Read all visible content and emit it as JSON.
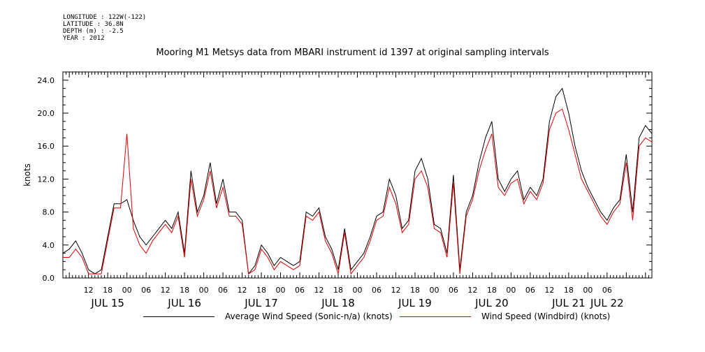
{
  "header": {
    "meta_lines": [
      "LONGITUDE : 122W(-122)",
      "LATITUDE : 36.8N",
      "DEPTH (m) : -2.5",
      "YEAR : 2012"
    ],
    "title": "Mooring M1 Metsys data from MBARI instrument id 1397 at original sampling intervals"
  },
  "colors": {
    "average": "#000000",
    "windbird": "#e00000"
  },
  "chart_data": {
    "type": "line",
    "title": "Mooring M1 Metsys data from MBARI instrument id 1397 at original sampling intervals",
    "ylabel": "knots",
    "xlabel": "",
    "ylim": [
      0,
      25
    ],
    "yticks": [
      0.0,
      4.0,
      8.0,
      12.0,
      16.0,
      20.0,
      24.0
    ],
    "ytick_labels": [
      "0.0",
      "4.0",
      "8.0",
      "12.0",
      "16.0",
      "20.0",
      "24.0"
    ],
    "xlim_hours_from_jul15_00": [
      -20,
      164
    ],
    "hour_tick_labels": [
      "12",
      "18",
      "00",
      "06",
      "12",
      "18",
      "00",
      "06",
      "12",
      "18",
      "00",
      "06",
      "12",
      "18",
      "00",
      "06",
      "12",
      "18",
      "00",
      "06",
      "12",
      "18",
      "00",
      "06",
      "12",
      "18",
      "00",
      "06"
    ],
    "day_labels": [
      "JUL 15",
      "JUL 16",
      "JUL 17",
      "JUL 18",
      "JUL 19",
      "JUL 20",
      "JUL 21",
      "JUL 22"
    ],
    "grid": false,
    "legend": "bottom",
    "series": [
      {
        "name": "Average Wind Speed (Sonic-n/a) (knots)",
        "color": "#000000",
        "x_hours": [
          -20,
          -18,
          -16,
          -14,
          -12,
          -10,
          -8,
          -6,
          -4,
          -2,
          0,
          2,
          4,
          6,
          8,
          10,
          12,
          14,
          16,
          18,
          20,
          22,
          24,
          26,
          28,
          30,
          32,
          34,
          36,
          38,
          40,
          42,
          44,
          46,
          48,
          50,
          52,
          54,
          56,
          58,
          60,
          62,
          64,
          66,
          68,
          70,
          72,
          74,
          76,
          78,
          80,
          82,
          84,
          86,
          88,
          90,
          92,
          94,
          96,
          98,
          100,
          102,
          104,
          106,
          108,
          110,
          112,
          114,
          116,
          118,
          120,
          122,
          124,
          126,
          128,
          130,
          132,
          134,
          136,
          138,
          140,
          142,
          144,
          146,
          148,
          150,
          152,
          154,
          156,
          158,
          160,
          162,
          164
        ],
        "values": [
          3.0,
          3.5,
          4.5,
          3.0,
          1.0,
          0.5,
          1.0,
          5.0,
          9.0,
          9.0,
          9.5,
          7.0,
          5.0,
          4.0,
          5.0,
          6.0,
          7.0,
          6.0,
          8.0,
          3.0,
          13.0,
          8.0,
          10.0,
          14.0,
          9.0,
          12.0,
          8.0,
          8.0,
          7.0,
          0.5,
          1.5,
          4.0,
          3.0,
          1.5,
          2.5,
          2.0,
          1.5,
          2.0,
          8.0,
          7.5,
          8.5,
          5.0,
          3.5,
          1.0,
          6.0,
          1.0,
          2.0,
          3.0,
          5.0,
          7.5,
          8.0,
          12.0,
          10.0,
          6.0,
          7.0,
          13.0,
          14.5,
          12.0,
          6.5,
          6.0,
          3.0,
          12.5,
          1.0,
          8.0,
          10.0,
          14.0,
          17.0,
          19.0,
          12.0,
          10.5,
          12.0,
          13.0,
          9.5,
          11.0,
          10.0,
          12.0,
          19.0,
          22.0,
          23.0,
          20.0,
          16.0,
          13.0,
          11.0,
          9.5,
          8.0,
          7.0,
          8.5,
          9.5,
          15.0,
          8.0,
          17.0,
          18.5,
          17.5
        ]
      },
      {
        "name": "Wind Speed (Windbird) (knots)",
        "color": "#e00000",
        "x_hours": [
          -20,
          -18,
          -16,
          -14,
          -12,
          -10,
          -8,
          -6,
          -4,
          -2,
          0,
          2,
          4,
          6,
          8,
          10,
          12,
          14,
          16,
          18,
          20,
          22,
          24,
          26,
          28,
          30,
          32,
          34,
          36,
          38,
          40,
          42,
          44,
          46,
          48,
          50,
          52,
          54,
          56,
          58,
          60,
          62,
          64,
          66,
          68,
          70,
          72,
          74,
          76,
          78,
          80,
          82,
          84,
          86,
          88,
          90,
          92,
          94,
          96,
          98,
          100,
          102,
          104,
          106,
          108,
          110,
          112,
          114,
          116,
          118,
          120,
          122,
          124,
          126,
          128,
          130,
          132,
          134,
          136,
          138,
          140,
          142,
          144,
          146,
          148,
          150,
          152,
          154,
          156,
          158,
          160,
          162,
          164
        ],
        "values": [
          2.5,
          2.5,
          3.5,
          2.5,
          0.5,
          0.5,
          0.5,
          4.5,
          8.5,
          8.5,
          17.5,
          6.0,
          4.0,
          3.0,
          4.5,
          5.5,
          6.5,
          5.5,
          7.5,
          2.5,
          12.0,
          7.5,
          9.5,
          13.0,
          8.5,
          11.0,
          7.5,
          7.5,
          6.5,
          0.5,
          1.0,
          3.5,
          2.5,
          1.0,
          2.0,
          1.5,
          1.0,
          1.5,
          7.5,
          7.0,
          8.0,
          4.5,
          3.0,
          0.5,
          5.5,
          0.5,
          1.5,
          2.5,
          4.5,
          7.0,
          7.5,
          11.0,
          9.0,
          5.5,
          6.5,
          12.0,
          13.0,
          11.0,
          6.0,
          5.5,
          2.5,
          11.5,
          0.5,
          7.5,
          9.5,
          13.0,
          15.5,
          17.5,
          11.0,
          10.0,
          11.5,
          12.0,
          9.0,
          10.5,
          9.5,
          11.5,
          18.0,
          20.0,
          20.5,
          18.0,
          15.0,
          12.0,
          10.5,
          9.0,
          7.5,
          6.5,
          8.0,
          9.0,
          14.0,
          7.0,
          16.0,
          17.0,
          16.5
        ]
      }
    ]
  }
}
